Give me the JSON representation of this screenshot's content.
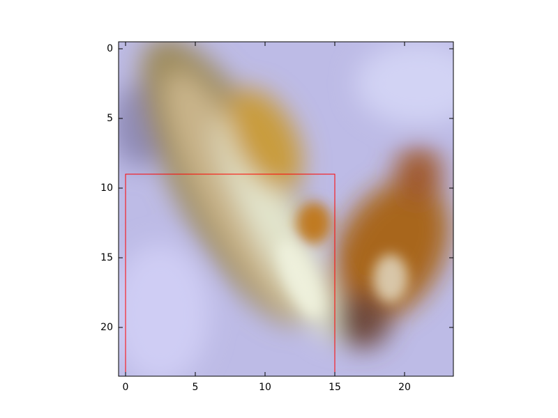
{
  "chart_data": {
    "type": "image",
    "xlim": [
      -0.5,
      23.5
    ],
    "ylim": [
      23.5,
      -0.5
    ],
    "xticks": [
      0,
      5,
      10,
      15,
      20
    ],
    "yticks": [
      0,
      5,
      10,
      15,
      20
    ],
    "rectangle": {
      "x": 0,
      "y": 9,
      "width": 15,
      "height": 15,
      "color": "#ff0000"
    }
  }
}
